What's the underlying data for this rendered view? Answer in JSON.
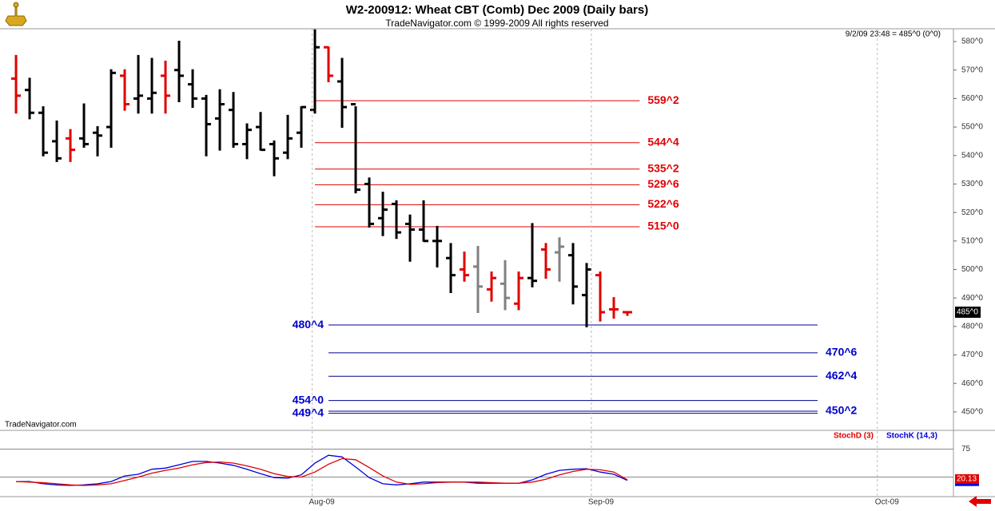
{
  "chart_data": [
    {
      "type": "ohlc",
      "title": "W2-200912:  Wheat CBT (Comb) Dec 2009  (Daily bars)",
      "subtitle": "TradeNavigator.com © 1999-2009 All rights reserved",
      "info": "9/2/09 23:48 = 485^0 (0^0)",
      "watermark": "TradeNavigator.com",
      "open": [
        567,
        563,
        555,
        545,
        546,
        546,
        548,
        550,
        568,
        560,
        560,
        568,
        570,
        565,
        560,
        553,
        556,
        544,
        550,
        544,
        541,
        548,
        556,
        578,
        566,
        558,
        530,
        518,
        523,
        516,
        514,
        510,
        504,
        500,
        501,
        493,
        495,
        488,
        497,
        507,
        506,
        505,
        491,
        498,
        486,
        485
      ],
      "high": [
        575,
        567,
        557,
        552,
        549,
        558,
        550,
        570,
        570,
        575,
        574,
        573,
        580,
        570,
        561,
        563,
        562,
        551,
        555,
        545,
        554,
        557,
        584,
        578,
        574,
        557,
        532,
        527,
        524,
        519,
        524,
        515,
        509,
        506,
        508,
        499,
        503,
        499,
        516,
        509,
        511,
        509,
        502,
        499,
        490,
        485
      ],
      "low": [
        555,
        553,
        540,
        538,
        538,
        543,
        540,
        543,
        556,
        555,
        555,
        555,
        559,
        557,
        540,
        542,
        543,
        539,
        542,
        533,
        539,
        543,
        555,
        566,
        550,
        527,
        515,
        512,
        511,
        503,
        510,
        501,
        492,
        496,
        485,
        489,
        486,
        486,
        494,
        497,
        496,
        488,
        480,
        482,
        483,
        484
      ],
      "close": [
        561,
        555,
        541,
        539,
        542,
        544,
        547,
        569,
        558,
        561,
        562,
        561,
        568,
        560,
        551,
        558,
        544,
        549,
        542,
        539,
        546,
        557,
        578,
        568,
        557,
        528,
        516,
        521,
        513,
        514,
        510,
        510,
        498,
        498,
        494,
        497,
        490,
        497,
        496,
        500,
        508,
        494,
        500,
        485,
        486,
        485
      ],
      "bar_colors": [
        "#e00000",
        "#000000",
        "#000000",
        "#000000",
        "#e00000",
        "#000000",
        "#000000",
        "#000000",
        "#e00000",
        "#000000",
        "#000000",
        "#e00000",
        "#000000",
        "#000000",
        "#000000",
        "#000000",
        "#000000",
        "#000000",
        "#000000",
        "#000000",
        "#000000",
        "#000000",
        "#000000",
        "#e00000",
        "#000000",
        "#000000",
        "#000000",
        "#000000",
        "#000000",
        "#000000",
        "#000000",
        "#000000",
        "#000000",
        "#e00000",
        "#808080",
        "#e00000",
        "#808080",
        "#e00000",
        "#000000",
        "#e00000",
        "#808080",
        "#000000",
        "#000000",
        "#e00000",
        "#e00000",
        "#e00000"
      ],
      "xlim": [
        -1.18,
        69
      ],
      "ylim": [
        443.8,
        584.5
      ],
      "yticks": [
        {
          "value": 450,
          "label": "450^0"
        },
        {
          "value": 460,
          "label": "460^0"
        },
        {
          "value": 470,
          "label": "470^0"
        },
        {
          "value": 480,
          "label": "480^0"
        },
        {
          "value": 490,
          "label": "490^0"
        },
        {
          "value": 500,
          "label": "500^0"
        },
        {
          "value": 510,
          "label": "510^0"
        },
        {
          "value": 520,
          "label": "520^0"
        },
        {
          "value": 530,
          "label": "530^0"
        },
        {
          "value": 540,
          "label": "540^0"
        },
        {
          "value": 550,
          "label": "550^0"
        },
        {
          "value": 560,
          "label": "560^0"
        },
        {
          "value": 570,
          "label": "570^0"
        },
        {
          "value": 580,
          "label": "580^0"
        }
      ],
      "last_price": {
        "value": 485,
        "label": "485^0"
      },
      "levels": [
        {
          "value": 559.25,
          "label": "559^2",
          "color": "#e00000",
          "side": "right"
        },
        {
          "value": 544.5,
          "label": "544^4",
          "color": "#e00000",
          "side": "right"
        },
        {
          "value": 535.25,
          "label": "535^2",
          "color": "#e00000",
          "side": "right"
        },
        {
          "value": 529.75,
          "label": "529^6",
          "color": "#e00000",
          "side": "right"
        },
        {
          "value": 522.75,
          "label": "522^6",
          "color": "#e00000",
          "side": "right"
        },
        {
          "value": 515,
          "label": "515^0",
          "color": "#e00000",
          "side": "right"
        },
        {
          "value": 480.5,
          "label": "480^4",
          "color": "#00008b",
          "side": "left"
        },
        {
          "value": 470.75,
          "label": "470^6",
          "color": "#00008b",
          "side": "right"
        },
        {
          "value": 462.5,
          "label": "462^4",
          "color": "#00008b",
          "side": "right"
        },
        {
          "value": 454,
          "label": "454^0",
          "color": "#00008b",
          "side": "left"
        },
        {
          "value": 449.5,
          "label": "449^4",
          "color": "#00008b",
          "side": "left"
        },
        {
          "value": 450.25,
          "label": "450^2",
          "color": "#00008b",
          "side": "right"
        }
      ]
    },
    {
      "type": "line",
      "series": [
        {
          "name": "StochD (3)",
          "color": "#e00000",
          "values": [
            17,
            16,
            15,
            13,
            11,
            10,
            11,
            13,
            19,
            25,
            32,
            37,
            41,
            47,
            51,
            52,
            50,
            45,
            39,
            31,
            26,
            25,
            34,
            48,
            58,
            56,
            42,
            27,
            16,
            12,
            13,
            15,
            16,
            16,
            16,
            15,
            14,
            14,
            16,
            21,
            29,
            35,
            39,
            38,
            34,
            20.13
          ]
        },
        {
          "name": "StochK (14,3)",
          "color": "#0000dd",
          "values": [
            17,
            17,
            13,
            11,
            10,
            11,
            13,
            17,
            27,
            30,
            39,
            41,
            47,
            53,
            53,
            50,
            46,
            39,
            31,
            24,
            23,
            29,
            50,
            64,
            61,
            43,
            24,
            13,
            11,
            13,
            16,
            16,
            16,
            16,
            14,
            14,
            14,
            14,
            20,
            30,
            37,
            39,
            40,
            34,
            30,
            19
          ]
        }
      ],
      "xlim": [
        -1.18,
        69
      ],
      "ylim": [
        0,
        100
      ],
      "yticks": [
        75
      ],
      "guide_lines": [
        75,
        25
      ],
      "xticks": [
        {
          "value": 21.8,
          "label": "Aug-09"
        },
        {
          "value": 42.35,
          "label": "Sep-09"
        },
        {
          "value": 63.4,
          "label": "Oct-09"
        }
      ]
    }
  ]
}
